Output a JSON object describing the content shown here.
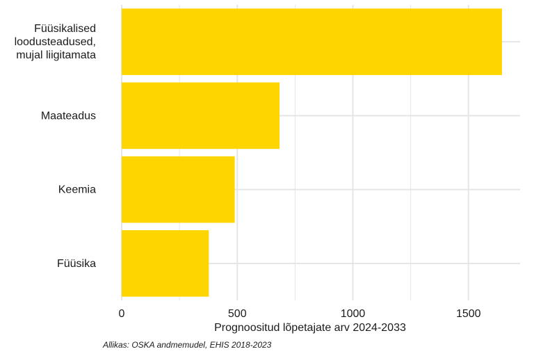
{
  "chart_data": {
    "type": "bar",
    "orientation": "horizontal",
    "categories": [
      [
        "Füüsikalised",
        "loodusteadused,",
        "mujal liigitamata"
      ],
      [
        "Maateadus"
      ],
      [
        "Keemia"
      ],
      [
        "Füüsika"
      ]
    ],
    "values": [
      1645,
      683,
      489,
      377
    ],
    "xlabel": "Prognoositud lõpetajate arv 2024-2033",
    "ylabel": "",
    "xlim": [
      0,
      1730
    ],
    "xticks": [
      0,
      500,
      1000,
      1500
    ],
    "grid": true,
    "bar_color": "#FFD500",
    "grid_color": "#E5E5E5",
    "caption": "Allikas: OSKA andmemudel, EHIS 2018-2023"
  }
}
